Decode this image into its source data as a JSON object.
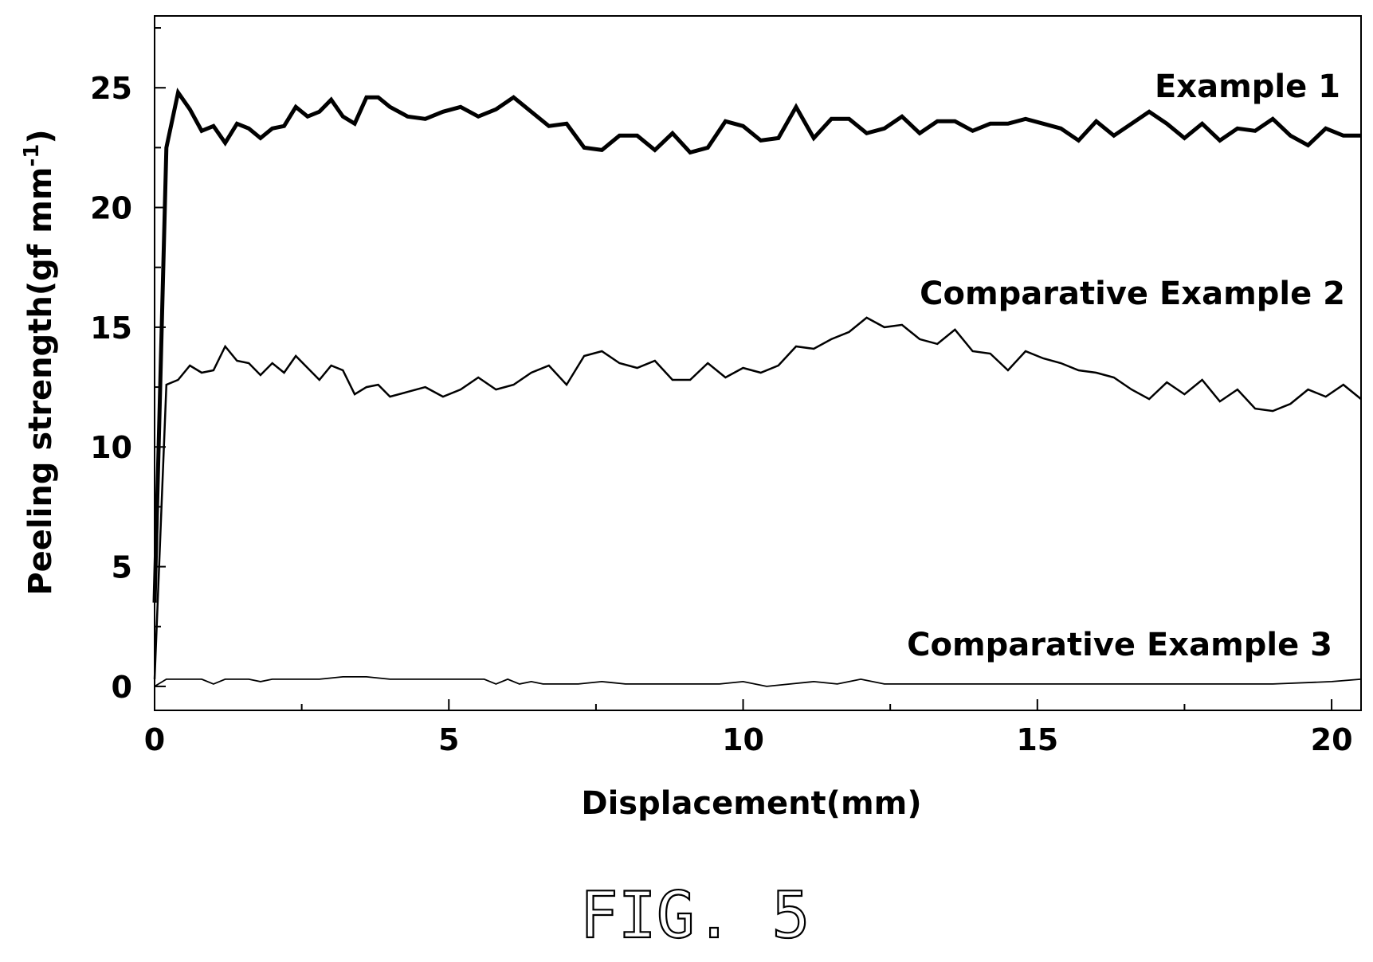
{
  "figure_label": "FIG. 5",
  "chart_data": {
    "type": "line",
    "xlabel": "Displacement(mm)",
    "ylabel": "Peeling strength(gf mm",
    "ylabel_superscript": "-1",
    "ylabel_close": ")",
    "xlim": [
      0,
      20.5
    ],
    "ylim": [
      -1,
      28
    ],
    "xticks": [
      0,
      5,
      10,
      15,
      20
    ],
    "yticks": [
      0,
      5,
      10,
      15,
      20,
      25
    ],
    "grid": false,
    "series": [
      {
        "name": "Example 1",
        "stroke_width": 5,
        "x": [
          0,
          0.2,
          0.4,
          0.6,
          0.8,
          1.0,
          1.2,
          1.4,
          1.6,
          1.8,
          2.0,
          2.2,
          2.4,
          2.6,
          2.8,
          3.0,
          3.2,
          3.4,
          3.6,
          3.8,
          4.0,
          4.3,
          4.6,
          4.9,
          5.2,
          5.5,
          5.8,
          6.1,
          6.4,
          6.7,
          7.0,
          7.3,
          7.6,
          7.9,
          8.2,
          8.5,
          8.8,
          9.1,
          9.4,
          9.7,
          10.0,
          10.3,
          10.6,
          10.9,
          11.2,
          11.5,
          11.8,
          12.1,
          12.4,
          12.7,
          13.0,
          13.3,
          13.6,
          13.9,
          14.2,
          14.5,
          14.8,
          15.1,
          15.4,
          15.7,
          16.0,
          16.3,
          16.6,
          16.9,
          17.2,
          17.5,
          17.8,
          18.1,
          18.4,
          18.7,
          19.0,
          19.3,
          19.6,
          19.9,
          20.2,
          20.5
        ],
        "y": [
          3.5,
          22.5,
          24.8,
          24.1,
          23.2,
          23.4,
          22.7,
          23.5,
          23.3,
          22.9,
          23.3,
          23.4,
          24.2,
          23.8,
          24.0,
          24.5,
          23.8,
          23.5,
          24.6,
          24.6,
          24.2,
          23.8,
          23.7,
          24.0,
          24.2,
          23.8,
          24.1,
          24.6,
          24.0,
          23.4,
          23.5,
          22.5,
          22.4,
          23.0,
          23.0,
          22.4,
          23.1,
          22.3,
          22.5,
          23.6,
          23.4,
          22.8,
          22.9,
          24.2,
          22.9,
          23.7,
          23.7,
          23.1,
          23.3,
          23.8,
          23.1,
          23.6,
          23.6,
          23.2,
          23.5,
          23.5,
          23.7,
          23.5,
          23.3,
          22.8,
          23.6,
          23.0,
          23.5,
          24.0,
          23.5,
          22.9,
          23.5,
          22.8,
          23.3,
          23.2,
          23.7,
          23.0,
          22.6,
          23.3,
          23.0,
          23.0
        ]
      },
      {
        "name": "Comparative Example 2",
        "stroke_width": 2.5,
        "x": [
          0,
          0.2,
          0.4,
          0.6,
          0.8,
          1.0,
          1.2,
          1.4,
          1.6,
          1.8,
          2.0,
          2.2,
          2.4,
          2.6,
          2.8,
          3.0,
          3.2,
          3.4,
          3.6,
          3.8,
          4.0,
          4.3,
          4.6,
          4.9,
          5.2,
          5.5,
          5.8,
          6.1,
          6.4,
          6.7,
          7.0,
          7.3,
          7.6,
          7.9,
          8.2,
          8.5,
          8.8,
          9.1,
          9.4,
          9.7,
          10.0,
          10.3,
          10.6,
          10.9,
          11.2,
          11.5,
          11.8,
          12.1,
          12.4,
          12.7,
          13.0,
          13.3,
          13.6,
          13.9,
          14.2,
          14.5,
          14.8,
          15.1,
          15.4,
          15.7,
          16.0,
          16.3,
          16.6,
          16.9,
          17.2,
          17.5,
          17.8,
          18.1,
          18.4,
          18.7,
          19.0,
          19.3,
          19.6,
          19.9,
          20.2,
          20.5
        ],
        "y": [
          0.3,
          12.6,
          12.8,
          13.4,
          13.1,
          13.2,
          14.2,
          13.6,
          13.5,
          13.0,
          13.5,
          13.1,
          13.8,
          13.3,
          12.8,
          13.4,
          13.2,
          12.2,
          12.5,
          12.6,
          12.1,
          12.3,
          12.5,
          12.1,
          12.4,
          12.9,
          12.4,
          12.6,
          13.1,
          13.4,
          12.6,
          13.8,
          14.0,
          13.5,
          13.3,
          13.6,
          12.8,
          12.8,
          13.5,
          12.9,
          13.3,
          13.1,
          13.4,
          14.2,
          14.1,
          14.5,
          14.8,
          15.4,
          15.0,
          15.1,
          14.5,
          14.3,
          14.9,
          14.0,
          13.9,
          13.2,
          14.0,
          13.7,
          13.5,
          13.2,
          13.1,
          12.9,
          12.4,
          12.0,
          12.7,
          12.2,
          12.8,
          11.9,
          12.4,
          11.6,
          11.5,
          11.8,
          12.4,
          12.1,
          12.6,
          12.0
        ]
      },
      {
        "name": "Comparative Example 3",
        "stroke_width": 1.8,
        "x": [
          0,
          0.2,
          0.4,
          0.6,
          0.8,
          1.0,
          1.2,
          1.4,
          1.6,
          1.8,
          2.0,
          2.4,
          2.8,
          3.2,
          3.6,
          4.0,
          4.4,
          4.8,
          5.2,
          5.6,
          5.8,
          6.0,
          6.2,
          6.4,
          6.6,
          6.8,
          7.2,
          7.6,
          8.0,
          8.4,
          8.8,
          9.2,
          9.6,
          10.0,
          10.4,
          10.8,
          11.2,
          11.6,
          11.8,
          12.0,
          12.4,
          12.8,
          13.2,
          14.0,
          15.0,
          16.0,
          17.0,
          18.0,
          19.0,
          20.0,
          20.5
        ],
        "y": [
          0.0,
          0.3,
          0.3,
          0.3,
          0.3,
          0.1,
          0.3,
          0.3,
          0.3,
          0.2,
          0.3,
          0.3,
          0.3,
          0.4,
          0.4,
          0.3,
          0.3,
          0.3,
          0.3,
          0.3,
          0.1,
          0.3,
          0.1,
          0.2,
          0.1,
          0.1,
          0.1,
          0.2,
          0.1,
          0.1,
          0.1,
          0.1,
          0.1,
          0.2,
          0.0,
          0.1,
          0.2,
          0.1,
          0.2,
          0.3,
          0.1,
          0.1,
          0.1,
          0.1,
          0.1,
          0.1,
          0.1,
          0.1,
          0.1,
          0.2,
          0.3
        ]
      }
    ]
  }
}
